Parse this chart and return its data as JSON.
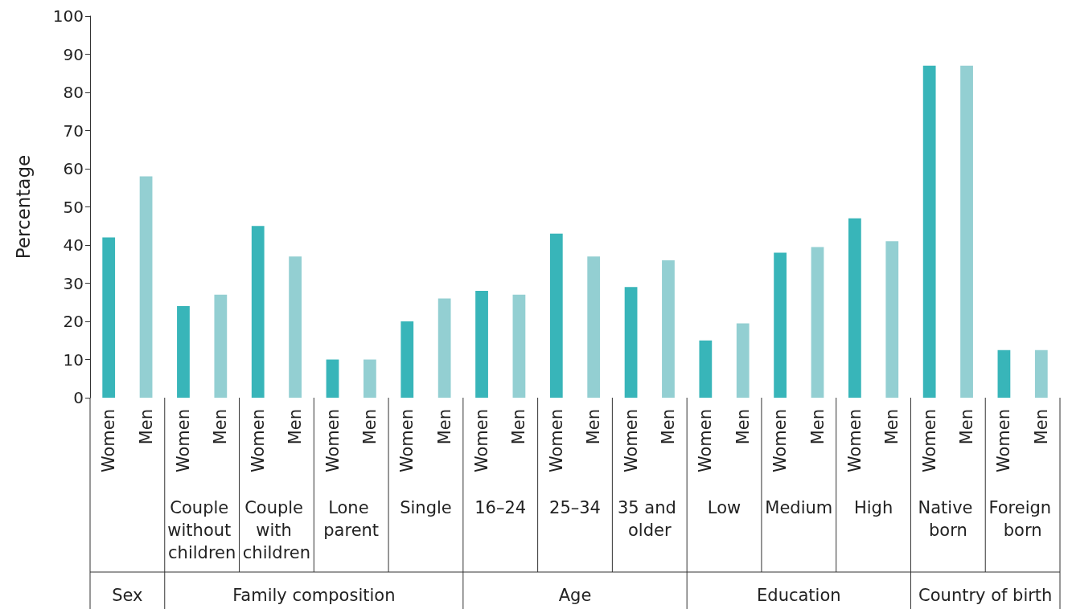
{
  "chart_data": {
    "type": "bar",
    "ylabel": "Percentage",
    "categories": [
      "Women",
      "Men",
      "Women",
      "Men",
      "Women",
      "Men",
      "Women",
      "Men",
      "Women",
      "Men",
      "Women",
      "Men",
      "Women",
      "Men",
      "Women",
      "Men",
      "Women",
      "Men",
      "Women",
      "Men",
      "Women",
      "Men",
      "Women",
      "Men",
      "Women",
      "Men"
    ],
    "values": [
      42,
      58,
      24,
      27,
      45,
      37,
      10,
      10,
      20,
      26,
      28,
      27,
      43,
      37,
      29,
      36,
      15,
      19.5,
      38,
      39.5,
      47,
      41,
      87,
      87,
      12.5,
      12.5
    ],
    "colors": [
      "#38b5b9",
      "#93cfd2",
      "#38b5b9",
      "#93cfd2",
      "#38b5b9",
      "#93cfd2",
      "#38b5b9",
      "#93cfd2",
      "#38b5b9",
      "#93cfd2",
      "#38b5b9",
      "#93cfd2",
      "#38b5b9",
      "#93cfd2",
      "#38b5b9",
      "#93cfd2",
      "#38b5b9",
      "#93cfd2",
      "#38b5b9",
      "#93cfd2",
      "#38b5b9",
      "#93cfd2",
      "#38b5b9",
      "#93cfd2",
      "#38b5b9",
      "#93cfd2"
    ],
    "ylim": [
      0,
      100
    ],
    "yticks": [
      0,
      10,
      20,
      30,
      40,
      50,
      60,
      70,
      80,
      90,
      100
    ],
    "grid": false,
    "annotations": [
      "Couple without children",
      "Couple with children",
      "Lone parent",
      "Single",
      "16–24",
      "25–34",
      "35 and older",
      "Low",
      "Medium",
      "High",
      "Native born",
      "Foreign born",
      "Sex",
      "Family composition",
      "Age",
      "Education",
      "Country of birth"
    ]
  }
}
